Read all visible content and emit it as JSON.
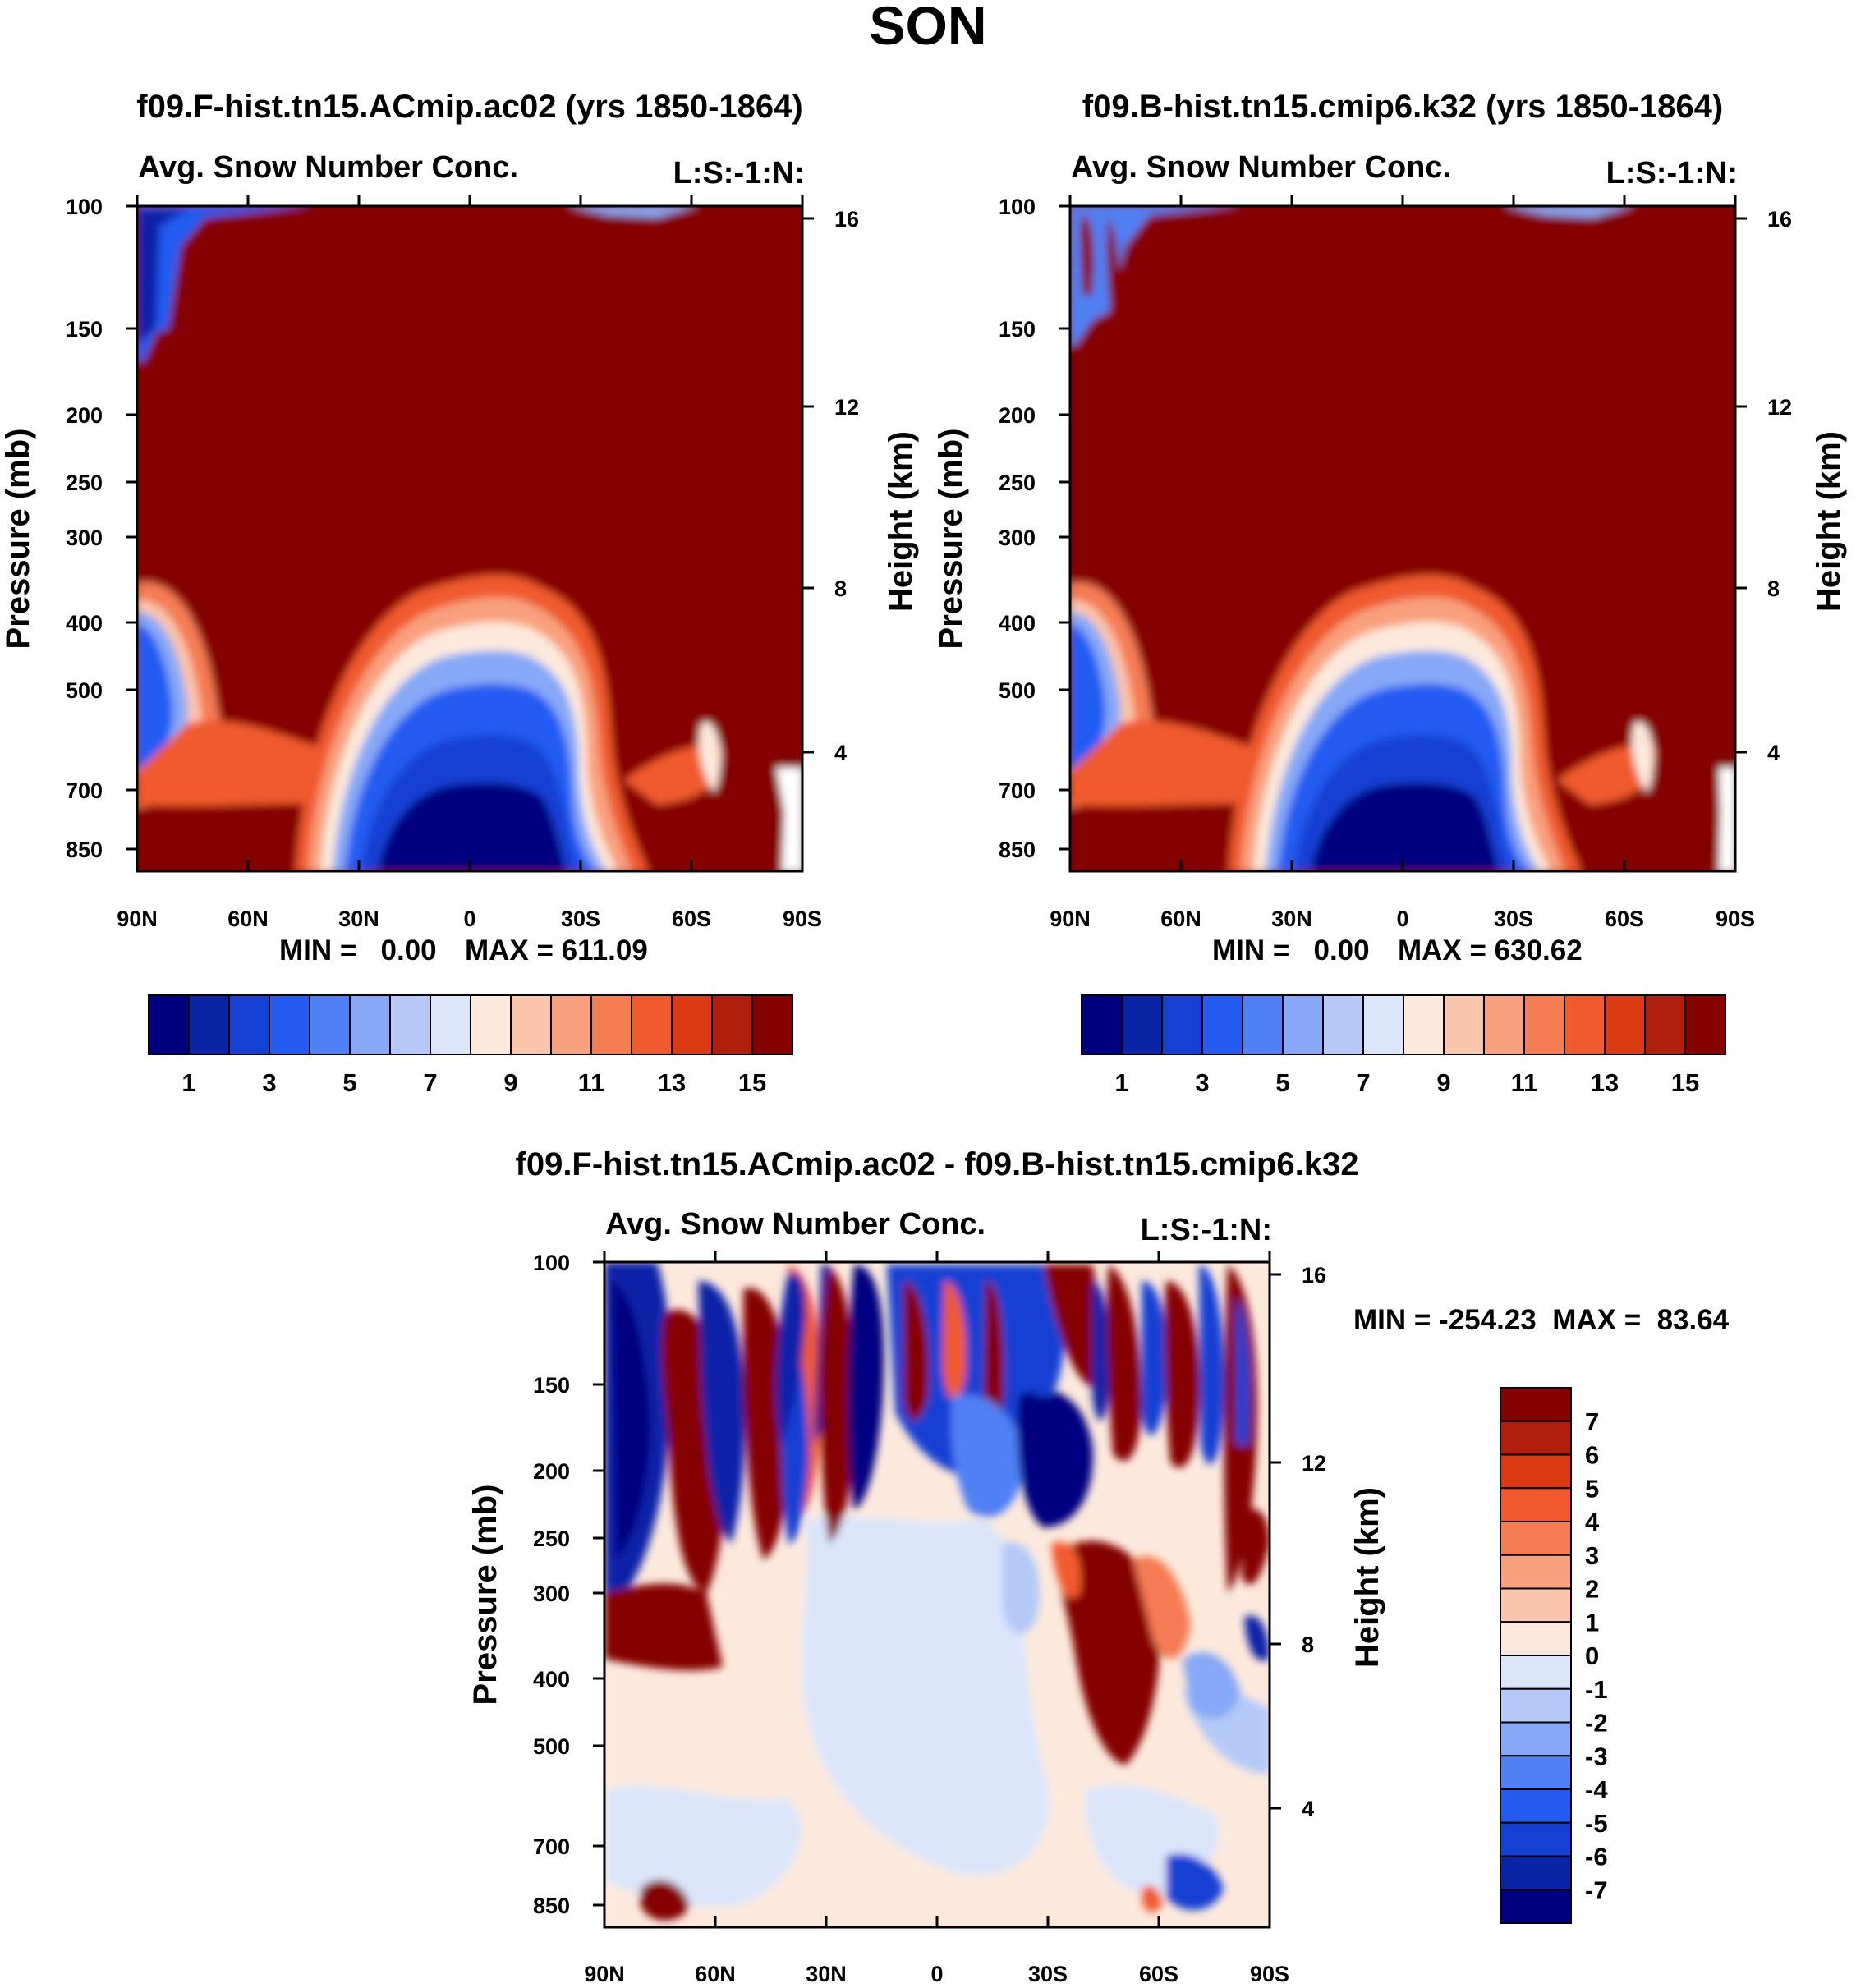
{
  "chart_data": [
    {
      "type": "heatmap",
      "panel": "top-left",
      "suptitle": "SON",
      "title": "f09.F-hist.tn15.ACmip.ac02 (yrs 1850-1864)",
      "left_label": "Avg. Snow Number Conc.",
      "right_label": "L:S:-1:N:",
      "ylabel": "Pressure (mb)",
      "ylabel_right": "Height (km)",
      "x_ticks": [
        "90N",
        "60N",
        "30N",
        "0",
        "30S",
        "60S",
        "90S"
      ],
      "y_ticks": [
        "100",
        "150",
        "200",
        "250",
        "300",
        "400",
        "500",
        "700",
        "850"
      ],
      "y_ticks_right": [
        "16",
        "12",
        "8",
        "4"
      ],
      "min_label": "MIN =   0.00",
      "max_label": "MAX = 611.09",
      "min": 0.0,
      "max": 611.09,
      "colorbar_labels": [
        "1",
        "3",
        "5",
        "7",
        "9",
        "11",
        "13",
        "15"
      ],
      "colorbar_orientation": "horizontal"
    },
    {
      "type": "heatmap",
      "panel": "top-right",
      "title": "f09.B-hist.tn15.cmip6.k32 (yrs 1850-1864)",
      "left_label": "Avg. Snow Number Conc.",
      "right_label": "L:S:-1:N:",
      "ylabel": "Pressure (mb)",
      "ylabel_right": "Height (km)",
      "x_ticks": [
        "90N",
        "60N",
        "30N",
        "0",
        "30S",
        "60S",
        "90S"
      ],
      "y_ticks": [
        "100",
        "150",
        "200",
        "250",
        "300",
        "400",
        "500",
        "700",
        "850"
      ],
      "y_ticks_right": [
        "16",
        "12",
        "8",
        "4"
      ],
      "min_label": "MIN =   0.00",
      "max_label": "MAX = 630.62",
      "min": 0.0,
      "max": 630.62,
      "colorbar_labels": [
        "1",
        "3",
        "5",
        "7",
        "9",
        "11",
        "13",
        "15"
      ],
      "colorbar_orientation": "horizontal"
    },
    {
      "type": "heatmap",
      "panel": "bottom-difference",
      "title": "f09.F-hist.tn15.ACmip.ac02 - f09.B-hist.tn15.cmip6.k32",
      "left_label": "Avg. Snow Number Conc.",
      "right_label": "L:S:-1:N:",
      "ylabel": "Pressure (mb)",
      "ylabel_right": "Height (km)",
      "x_ticks": [
        "90N",
        "60N",
        "30N",
        "0",
        "30S",
        "60S",
        "90S"
      ],
      "y_ticks": [
        "100",
        "150",
        "200",
        "250",
        "300",
        "400",
        "500",
        "700",
        "850"
      ],
      "y_ticks_right": [
        "16",
        "12",
        "8",
        "4"
      ],
      "minmax_label": "MIN = -254.23  MAX =  83.64",
      "min": -254.23,
      "max": 83.64,
      "colorbar_labels": [
        "7",
        "6",
        "5",
        "4",
        "3",
        "2",
        "1",
        "0",
        "-1",
        "-2",
        "-3",
        "-4",
        "-5",
        "-6",
        "-7"
      ],
      "colorbar_orientation": "vertical"
    }
  ],
  "colors": {
    "seq_palette": [
      "#000080",
      "#0a24a8",
      "#1440d4",
      "#245cf2",
      "#4f80f4",
      "#86a8f6",
      "#b4c9f8",
      "#dbe6fb",
      "#fde9dc",
      "#fbc6ad",
      "#f9a07d",
      "#f67c52",
      "#f05a2e",
      "#dc3a12",
      "#b01e0c",
      "#850000"
    ],
    "div_palette": [
      "#850000",
      "#b01e0c",
      "#dc3a12",
      "#f05a2e",
      "#f67c52",
      "#f9a07d",
      "#fbc6ad",
      "#fde9dc",
      "#dbe6fb",
      "#b4c9f8",
      "#86a8f6",
      "#4f80f4",
      "#245cf2",
      "#1440d4",
      "#0a24a8",
      "#000080"
    ]
  }
}
